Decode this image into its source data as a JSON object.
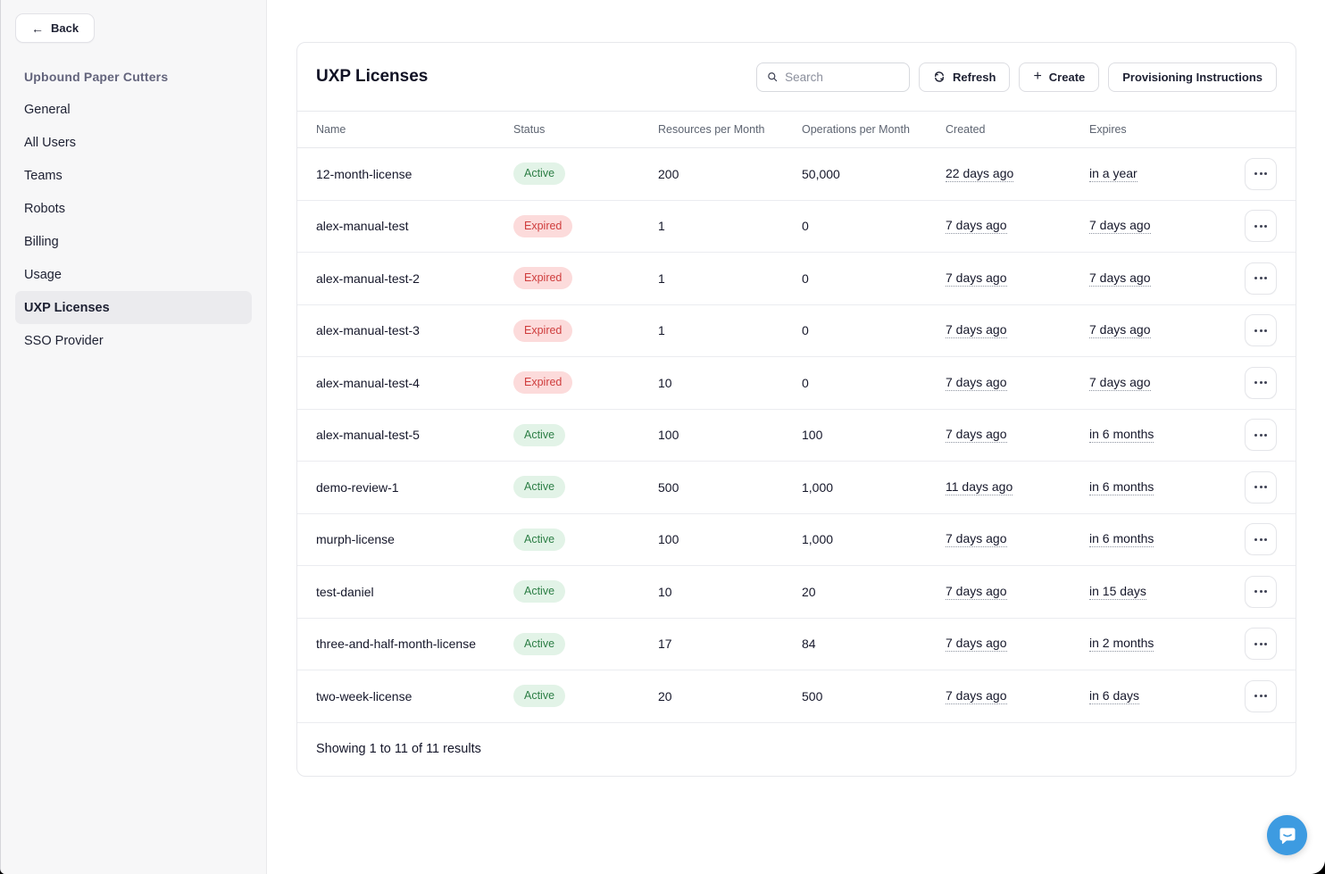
{
  "colors": {
    "accent_chat_blue": "#3d9be1",
    "active_badge_bg": "#e2f3e7",
    "active_badge_text": "#2c7e45",
    "expired_badge_bg": "#fcdbdb",
    "expired_badge_text": "#cf3d3d",
    "sidebar_bg": "#f7f7f8",
    "selected_nav_bg": "#ebebee"
  },
  "sidebar": {
    "back_label": "Back",
    "org_name": "Upbound Paper Cutters",
    "items": [
      {
        "label": "General",
        "active": false
      },
      {
        "label": "All Users",
        "active": false
      },
      {
        "label": "Teams",
        "active": false
      },
      {
        "label": "Robots",
        "active": false
      },
      {
        "label": "Billing",
        "active": false
      },
      {
        "label": "Usage",
        "active": false
      },
      {
        "label": "UXP Licenses",
        "active": true
      },
      {
        "label": "SSO Provider",
        "active": false
      }
    ]
  },
  "main": {
    "title": "UXP Licenses",
    "search": {
      "placeholder": "Search"
    },
    "buttons": {
      "refresh": "Refresh",
      "create": "Create",
      "provisioning": "Provisioning Instructions"
    },
    "table": {
      "columns": [
        "Name",
        "Status",
        "Resources per Month",
        "Operations per Month",
        "Created",
        "Expires"
      ],
      "rows": [
        {
          "name": "12-month-license",
          "status": "Active",
          "resources": "200",
          "operations": "50,000",
          "created": "22 days ago",
          "expires": "in a year"
        },
        {
          "name": "alex-manual-test",
          "status": "Expired",
          "resources": "1",
          "operations": "0",
          "created": "7 days ago",
          "expires": "7 days ago"
        },
        {
          "name": "alex-manual-test-2",
          "status": "Expired",
          "resources": "1",
          "operations": "0",
          "created": "7 days ago",
          "expires": "7 days ago"
        },
        {
          "name": "alex-manual-test-3",
          "status": "Expired",
          "resources": "1",
          "operations": "0",
          "created": "7 days ago",
          "expires": "7 days ago"
        },
        {
          "name": "alex-manual-test-4",
          "status": "Expired",
          "resources": "10",
          "operations": "0",
          "created": "7 days ago",
          "expires": "7 days ago"
        },
        {
          "name": "alex-manual-test-5",
          "status": "Active",
          "resources": "100",
          "operations": "100",
          "created": "7 days ago",
          "expires": "in 6 months"
        },
        {
          "name": "demo-review-1",
          "status": "Active",
          "resources": "500",
          "operations": "1,000",
          "created": "11 days ago",
          "expires": "in 6 months"
        },
        {
          "name": "murph-license",
          "status": "Active",
          "resources": "100",
          "operations": "1,000",
          "created": "7 days ago",
          "expires": "in 6 months"
        },
        {
          "name": "test-daniel",
          "status": "Active",
          "resources": "10",
          "operations": "20",
          "created": "7 days ago",
          "expires": "in 15 days"
        },
        {
          "name": "three-and-half-month-license",
          "status": "Active",
          "resources": "17",
          "operations": "84",
          "created": "7 days ago",
          "expires": "in 2 months"
        },
        {
          "name": "two-week-license",
          "status": "Active",
          "resources": "20",
          "operations": "500",
          "created": "7 days ago",
          "expires": "in 6 days"
        }
      ],
      "footer": "Showing 1 to 11 of 11 results"
    }
  }
}
